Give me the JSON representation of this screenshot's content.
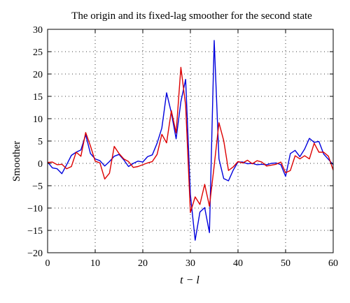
{
  "chart_data": {
    "type": "line",
    "title": "The origin and its fixed-lag smoother for the second state",
    "xlabel": "t − l",
    "ylabel": "Smoother",
    "xlim": [
      0,
      60
    ],
    "ylim": [
      -20,
      30
    ],
    "xticks": [
      0,
      10,
      20,
      30,
      40,
      50,
      60
    ],
    "yticks": [
      -20,
      -15,
      -10,
      -5,
      0,
      5,
      10,
      15,
      20,
      25,
      30
    ],
    "grid": true,
    "series": [
      {
        "color": "#0000dd",
        "x": [
          0,
          1,
          2,
          3,
          4,
          5,
          6,
          7,
          8,
          9,
          10,
          11,
          12,
          13,
          14,
          15,
          16,
          17,
          18,
          19,
          20,
          21,
          22,
          23,
          24,
          25,
          26,
          27,
          28,
          29,
          30,
          31,
          32,
          33,
          34,
          35,
          36,
          37,
          38,
          39,
          40,
          41,
          42,
          43,
          44,
          45,
          46,
          47,
          48,
          49,
          50,
          51,
          52,
          53,
          54,
          55,
          56,
          57,
          58,
          59,
          60
        ],
        "values": [
          0.3,
          -1.0,
          -1.2,
          -2.3,
          -0.3,
          1.8,
          2.5,
          3.0,
          6.4,
          2.2,
          1.0,
          0.6,
          -0.6,
          0.4,
          1.6,
          2.0,
          0.8,
          -0.7,
          0.0,
          0.5,
          0.3,
          1.5,
          1.9,
          4.5,
          7.9,
          15.8,
          11.3,
          5.5,
          13.8,
          18.8,
          -7.0,
          -17.2,
          -10.9,
          -9.9,
          -15.5,
          27.5,
          1.0,
          -3.4,
          -3.9,
          -1.5,
          0.3,
          0.3,
          -0.1,
          0.0,
          -0.3,
          -0.2,
          -0.3,
          0.0,
          0.1,
          -0.3,
          -2.9,
          2.2,
          2.9,
          1.5,
          3.2,
          5.6,
          4.7,
          4.9,
          2.1,
          0.9,
          -0.3
        ]
      },
      {
        "color": "#dd0000",
        "x": [
          0,
          1,
          2,
          3,
          4,
          5,
          6,
          7,
          8,
          9,
          10,
          11,
          12,
          13,
          14,
          15,
          16,
          17,
          18,
          19,
          20,
          21,
          22,
          23,
          24,
          25,
          26,
          27,
          28,
          29,
          30,
          31,
          32,
          33,
          34,
          35,
          36,
          37,
          38,
          39,
          40,
          41,
          42,
          43,
          44,
          45,
          46,
          47,
          48,
          49,
          50,
          51,
          52,
          53,
          54,
          55,
          56,
          57,
          58,
          59,
          60
        ],
        "values": [
          0.2,
          0.3,
          -0.3,
          -0.2,
          -1.2,
          -0.7,
          2.5,
          1.6,
          6.9,
          3.9,
          0.5,
          0.1,
          -3.5,
          -2.2,
          3.8,
          2.2,
          1.0,
          0.4,
          -0.9,
          -0.7,
          -0.3,
          0.1,
          0.4,
          2.0,
          6.5,
          4.6,
          11.8,
          6.8,
          21.5,
          13.0,
          -11.0,
          -7.5,
          -9.2,
          -4.7,
          -9.6,
          -0.5,
          9.1,
          5.1,
          -1.6,
          -0.8,
          0.4,
          0.1,
          0.7,
          -0.1,
          0.6,
          0.3,
          -0.6,
          -0.4,
          -0.2,
          0.3,
          -2.1,
          -1.6,
          1.7,
          1.0,
          1.7,
          1.0,
          4.5,
          2.5,
          2.5,
          1.6,
          -1.5
        ]
      }
    ]
  }
}
